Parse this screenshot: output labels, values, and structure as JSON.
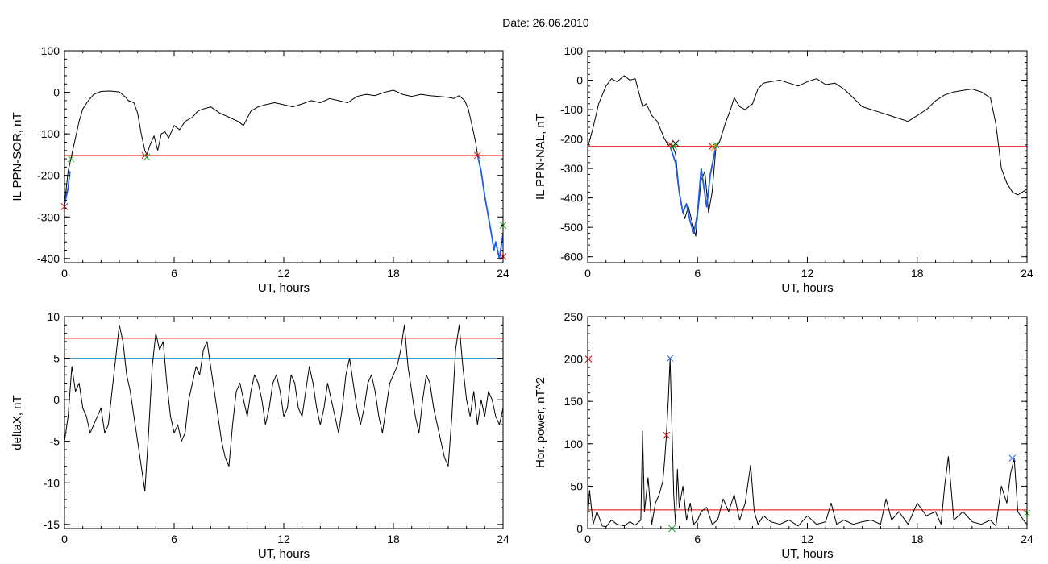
{
  "page": {
    "title": "Date:  26.06.2010"
  },
  "chart_data": [
    {
      "id": "p1",
      "type": "line",
      "ylabel": "IL PPN-SOR, nT",
      "xlabel": "UT, hours",
      "xlim": [
        0,
        24
      ],
      "ylim": [
        -410,
        100
      ],
      "xticks": [
        0,
        6,
        12,
        18,
        24
      ],
      "yticks": [
        -400,
        -300,
        -200,
        -100,
        0,
        100
      ],
      "series": [
        {
          "color": "#000000",
          "x": [
            0,
            0.2,
            0.5,
            0.8,
            1.0,
            1.3,
            1.6,
            2.0,
            2.5,
            3.0,
            3.3,
            3.5,
            3.8,
            4.0,
            4.2,
            4.4,
            4.5,
            4.7,
            4.9,
            5.1,
            5.3,
            5.5,
            5.7,
            6.0,
            6.3,
            6.6,
            7.0,
            7.3,
            7.6,
            8.0,
            8.5,
            9.0,
            9.5,
            9.8,
            10.2,
            10.6,
            11.0,
            11.5,
            12.0,
            12.5,
            13.0,
            13.5,
            14.0,
            14.5,
            15.0,
            15.5,
            16.0,
            16.5,
            17.0,
            17.5,
            18.0,
            18.5,
            19.0,
            19.5,
            20.0,
            20.5,
            21.0,
            21.3,
            21.6,
            21.9,
            22.1,
            22.3,
            22.5,
            22.6
          ],
          "y": [
            -270,
            -190,
            -130,
            -70,
            -40,
            -20,
            -5,
            2,
            3,
            1,
            -10,
            -20,
            -25,
            -50,
            -100,
            -140,
            -150,
            -125,
            -105,
            -140,
            -100,
            -95,
            -110,
            -80,
            -90,
            -70,
            -60,
            -45,
            -40,
            -35,
            -50,
            -60,
            -70,
            -80,
            -45,
            -35,
            -30,
            -25,
            -30,
            -35,
            -28,
            -20,
            -25,
            -15,
            -20,
            -25,
            -10,
            -5,
            -8,
            0,
            5,
            -5,
            -10,
            -5,
            -8,
            -10,
            -12,
            -15,
            -8,
            -20,
            -40,
            -80,
            -120,
            -150
          ]
        },
        {
          "color": "#1e5ee6",
          "x": [
            0,
            0.2,
            0.3
          ],
          "y": [
            -270,
            -230,
            -190
          ]
        },
        {
          "color": "#1e5ee6",
          "x": [
            22.6,
            22.8,
            23.0,
            23.2,
            23.4,
            23.5,
            23.6,
            23.8,
            24.0
          ],
          "y": [
            -150,
            -190,
            -250,
            -300,
            -350,
            -380,
            -360,
            -400,
            -340
          ]
        }
      ],
      "hlines": [
        {
          "y": -152,
          "color": "#e00000"
        }
      ],
      "markers": [
        {
          "x": 0,
          "y": -275,
          "color": "#e00000"
        },
        {
          "x": 0.35,
          "y": -160,
          "color": "#22aa22"
        },
        {
          "x": 4.4,
          "y": -152,
          "color": "#e00000"
        },
        {
          "x": 4.5,
          "y": -156,
          "color": "#22aa22"
        },
        {
          "x": 22.6,
          "y": -152,
          "color": "#e00000"
        },
        {
          "x": 24,
          "y": -395,
          "color": "#e00000"
        },
        {
          "x": 24,
          "y": -320,
          "color": "#22aa22"
        }
      ]
    },
    {
      "id": "p2",
      "type": "line",
      "ylabel": "IL PPN-NAL, nT",
      "xlabel": "UT, hours",
      "xlim": [
        0,
        24
      ],
      "ylim": [
        -620,
        100
      ],
      "xticks": [
        0,
        6,
        12,
        18,
        24
      ],
      "yticks": [
        -600,
        -500,
        -400,
        -300,
        -200,
        -100,
        0,
        100
      ],
      "series": [
        {
          "color": "#000000",
          "x": [
            0,
            0.3,
            0.6,
            1.0,
            1.3,
            1.6,
            2.0,
            2.3,
            2.6,
            3.0,
            3.2,
            3.5,
            3.8,
            4.0,
            4.2,
            4.4,
            4.6,
            4.8,
            5.0,
            5.1,
            5.3,
            5.5,
            5.7,
            5.9,
            6.0,
            6.2,
            6.4,
            6.6,
            6.8,
            7.0,
            7.2,
            7.5,
            7.8,
            8.0,
            8.3,
            8.6,
            9.0,
            9.3,
            9.6,
            10.0,
            10.5,
            11.0,
            11.5,
            12.0,
            12.5,
            13.0,
            13.5,
            14.0,
            14.5,
            15.0,
            15.5,
            16.0,
            16.5,
            17.0,
            17.5,
            18.0,
            18.5,
            19.0,
            19.5,
            20.0,
            20.5,
            21.0,
            21.5,
            22.0,
            22.3,
            22.6,
            22.9,
            23.2,
            23.5,
            24.0
          ],
          "y": [
            -230,
            -160,
            -80,
            -20,
            5,
            -5,
            15,
            0,
            5,
            -90,
            -80,
            -120,
            -140,
            -170,
            -200,
            -220,
            -220,
            -250,
            -380,
            -420,
            -470,
            -430,
            -480,
            -530,
            -460,
            -340,
            -310,
            -450,
            -380,
            -230,
            -210,
            -150,
            -100,
            -60,
            -90,
            -100,
            -80,
            -30,
            -10,
            -5,
            0,
            -10,
            -20,
            -5,
            5,
            -15,
            -10,
            -30,
            -60,
            -90,
            -100,
            -110,
            -120,
            -130,
            -140,
            -120,
            -100,
            -70,
            -50,
            -40,
            -35,
            -30,
            -40,
            -60,
            -150,
            -300,
            -350,
            -380,
            -390,
            -370
          ]
        },
        {
          "color": "#1e5ee6",
          "x": [
            4.5,
            4.8,
            5.0,
            5.2,
            5.4,
            5.6,
            5.8,
            6.0,
            6.2,
            6.5,
            6.7,
            7.0
          ],
          "y": [
            -225,
            -280,
            -380,
            -450,
            -420,
            -480,
            -520,
            -450,
            -300,
            -430,
            -320,
            -225
          ]
        }
      ],
      "hlines": [
        {
          "y": -225,
          "color": "#e00000"
        }
      ],
      "markers": [
        {
          "x": 4.5,
          "y": -218,
          "color": "#e00000"
        },
        {
          "x": 4.8,
          "y": -215,
          "color": "#000000"
        },
        {
          "x": 4.7,
          "y": -225,
          "color": "#22aa22"
        },
        {
          "x": 6.8,
          "y": -225,
          "color": "#e00000"
        },
        {
          "x": 7.0,
          "y": -220,
          "color": "#22aa22"
        },
        {
          "x": 6.9,
          "y": -230,
          "color": "#cc8800"
        }
      ]
    },
    {
      "id": "p3",
      "type": "line",
      "ylabel": "deltaX, nT",
      "xlabel": "UT, hours",
      "xlim": [
        0,
        24
      ],
      "ylim": [
        -15.5,
        10
      ],
      "xticks": [
        0,
        6,
        12,
        18,
        24
      ],
      "yticks": [
        -15,
        -10,
        -5,
        0,
        5,
        10
      ],
      "series": [
        {
          "color": "#000000",
          "x": [
            0,
            0.2,
            0.4,
            0.6,
            0.8,
            1.0,
            1.2,
            1.4,
            1.6,
            1.8,
            2.0,
            2.2,
            2.4,
            2.6,
            2.8,
            3.0,
            3.2,
            3.4,
            3.6,
            3.8,
            4.0,
            4.2,
            4.4,
            4.6,
            4.8,
            5.0,
            5.2,
            5.4,
            5.6,
            5.8,
            6.0,
            6.2,
            6.4,
            6.6,
            6.8,
            7.0,
            7.2,
            7.4,
            7.6,
            7.8,
            8.0,
            8.2,
            8.4,
            8.6,
            8.8,
            9.0,
            9.2,
            9.4,
            9.6,
            9.8,
            10.0,
            10.2,
            10.4,
            10.6,
            10.8,
            11.0,
            11.2,
            11.4,
            11.6,
            11.8,
            12.0,
            12.2,
            12.4,
            12.6,
            12.8,
            13.0,
            13.2,
            13.4,
            13.6,
            13.8,
            14.0,
            14.2,
            14.4,
            14.6,
            14.8,
            15.0,
            15.2,
            15.4,
            15.6,
            15.8,
            16.0,
            16.2,
            16.4,
            16.6,
            16.8,
            17.0,
            17.2,
            17.4,
            17.6,
            17.8,
            18.0,
            18.2,
            18.4,
            18.6,
            18.8,
            19.0,
            19.2,
            19.4,
            19.6,
            19.8,
            20.0,
            20.2,
            20.4,
            20.6,
            20.8,
            21.0,
            21.2,
            21.4,
            21.6,
            21.8,
            22.0,
            22.2,
            22.4,
            22.6,
            22.8,
            23.0,
            23.2,
            23.4,
            23.6,
            23.8,
            24.0
          ],
          "y": [
            -5,
            -2,
            4,
            1,
            2,
            -1,
            -2,
            -4,
            -3,
            -2,
            -1,
            -4,
            -3,
            1,
            5,
            9,
            7,
            3,
            1,
            -2,
            -5,
            -8,
            -11,
            -4,
            4,
            8,
            6,
            7,
            2,
            -2,
            -4,
            -3,
            -5,
            -4,
            0,
            2,
            4,
            3,
            6,
            7,
            4,
            1,
            -2,
            -5,
            -7,
            -8,
            -3,
            1,
            2,
            0,
            -2,
            1,
            3,
            2,
            0,
            -3,
            -1,
            2,
            3,
            1,
            -2,
            -1,
            3,
            2,
            -1,
            -2,
            1,
            4,
            2,
            -1,
            -3,
            -1,
            2,
            0,
            -2,
            -4,
            -1,
            3,
            5,
            2,
            -1,
            -3,
            -1,
            2,
            3,
            1,
            -2,
            -4,
            -1,
            2,
            3,
            4,
            6,
            9,
            4,
            1,
            -2,
            -4,
            0,
            3,
            2,
            -1,
            -3,
            -5,
            -7,
            -8,
            -2,
            6,
            9,
            4,
            0,
            -2,
            1,
            -3,
            0,
            -2,
            1,
            0,
            -2,
            -3,
            -1
          ]
        }
      ],
      "hlines": [
        {
          "y": 7.4,
          "color": "#e00000"
        },
        {
          "y": 5.0,
          "color": "#1a8fc8"
        }
      ]
    },
    {
      "id": "p4",
      "type": "line",
      "ylabel": "Hor. power, nT^2",
      "xlabel": "UT, hours",
      "xlim": [
        0,
        24
      ],
      "ylim": [
        0,
        250
      ],
      "xticks": [
        0,
        6,
        12,
        18,
        24
      ],
      "yticks": [
        0,
        50,
        100,
        150,
        200,
        250
      ],
      "series": [
        {
          "color": "#000000",
          "x": [
            0,
            0.1,
            0.3,
            0.5,
            0.8,
            1.0,
            1.3,
            1.6,
            2.0,
            2.3,
            2.6,
            2.9,
            3.0,
            3.1,
            3.3,
            3.5,
            3.7,
            3.9,
            4.1,
            4.2,
            4.3,
            4.4,
            4.5,
            4.6,
            4.7,
            4.8,
            4.9,
            5.0,
            5.2,
            5.4,
            5.6,
            5.8,
            6.0,
            6.2,
            6.5,
            6.8,
            7.1,
            7.4,
            7.7,
            8.0,
            8.3,
            8.6,
            8.9,
            9.1,
            9.3,
            9.6,
            10.0,
            10.5,
            11.0,
            11.5,
            12.0,
            12.5,
            13.0,
            13.3,
            13.6,
            14.0,
            14.5,
            15.0,
            15.5,
            16.0,
            16.3,
            16.6,
            17.0,
            17.5,
            18.0,
            18.5,
            19.0,
            19.3,
            19.5,
            19.7,
            20.0,
            20.5,
            21.0,
            21.5,
            22.0,
            22.3,
            22.6,
            22.9,
            23.1,
            23.3,
            23.5,
            23.8,
            24.0
          ],
          "y": [
            10,
            45,
            5,
            20,
            3,
            2,
            10,
            5,
            3,
            8,
            4,
            10,
            115,
            20,
            60,
            5,
            30,
            40,
            55,
            80,
            110,
            150,
            200,
            120,
            40,
            5,
            70,
            25,
            50,
            10,
            30,
            5,
            10,
            20,
            25,
            5,
            10,
            35,
            20,
            40,
            10,
            30,
            75,
            20,
            5,
            15,
            8,
            5,
            10,
            3,
            15,
            5,
            8,
            30,
            5,
            10,
            5,
            8,
            10,
            5,
            35,
            10,
            20,
            5,
            30,
            15,
            20,
            5,
            50,
            85,
            10,
            20,
            8,
            5,
            10,
            3,
            50,
            30,
            65,
            83,
            20,
            10,
            5
          ]
        }
      ],
      "hlines": [
        {
          "y": 22,
          "color": "#e00000"
        }
      ],
      "markers": [
        {
          "x": 0.05,
          "y": 200,
          "color": "#e00000"
        },
        {
          "x": 4.3,
          "y": 110,
          "color": "#e00000"
        },
        {
          "x": 4.5,
          "y": 201,
          "color": "#1e5ee6"
        },
        {
          "x": 4.6,
          "y": 0,
          "color": "#22aa22"
        },
        {
          "x": 23.2,
          "y": 83,
          "color": "#1e5ee6"
        },
        {
          "x": 24,
          "y": 18,
          "color": "#22aa22"
        }
      ]
    }
  ]
}
